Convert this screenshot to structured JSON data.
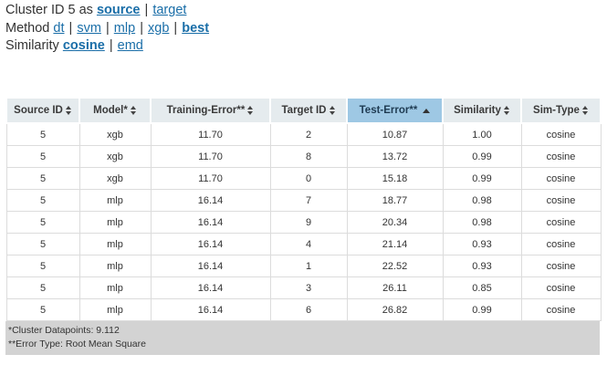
{
  "options": {
    "cluster": {
      "prefix": "Cluster ID 5 as",
      "selected": "source",
      "other": "target"
    },
    "method": {
      "prefix": "Method",
      "items": [
        "dt",
        "svm",
        "mlp",
        "xgb",
        "best"
      ],
      "selected": "best"
    },
    "similarity": {
      "prefix": "Similarity",
      "items": [
        "cosine",
        "emd"
      ],
      "selected": "cosine"
    }
  },
  "table": {
    "columns": [
      {
        "label": "Source ID",
        "sort": "both"
      },
      {
        "label": "Model*",
        "sort": "both"
      },
      {
        "label": "Training-Error**",
        "sort": "both"
      },
      {
        "label": "Target ID",
        "sort": "both"
      },
      {
        "label": "Test-Error**",
        "sort": "asc",
        "active": true
      },
      {
        "label": "Similarity",
        "sort": "both"
      },
      {
        "label": "Sim-Type",
        "sort": "both"
      }
    ],
    "rows": [
      [
        "5",
        "xgb",
        "11.70",
        "2",
        "10.87",
        "1.00",
        "cosine"
      ],
      [
        "5",
        "xgb",
        "11.70",
        "8",
        "13.72",
        "0.99",
        "cosine"
      ],
      [
        "5",
        "xgb",
        "11.70",
        "0",
        "15.18",
        "0.99",
        "cosine"
      ],
      [
        "5",
        "mlp",
        "16.14",
        "7",
        "18.77",
        "0.98",
        "cosine"
      ],
      [
        "5",
        "mlp",
        "16.14",
        "9",
        "20.34",
        "0.98",
        "cosine"
      ],
      [
        "5",
        "mlp",
        "16.14",
        "4",
        "21.14",
        "0.93",
        "cosine"
      ],
      [
        "5",
        "mlp",
        "16.14",
        "1",
        "22.52",
        "0.93",
        "cosine"
      ],
      [
        "5",
        "mlp",
        "16.14",
        "3",
        "26.11",
        "0.85",
        "cosine"
      ],
      [
        "5",
        "mlp",
        "16.14",
        "6",
        "26.82",
        "0.99",
        "cosine"
      ]
    ],
    "footnotes": [
      "*Cluster Datapoints: 9.112",
      "**Error Type: Root Mean Square"
    ]
  }
}
